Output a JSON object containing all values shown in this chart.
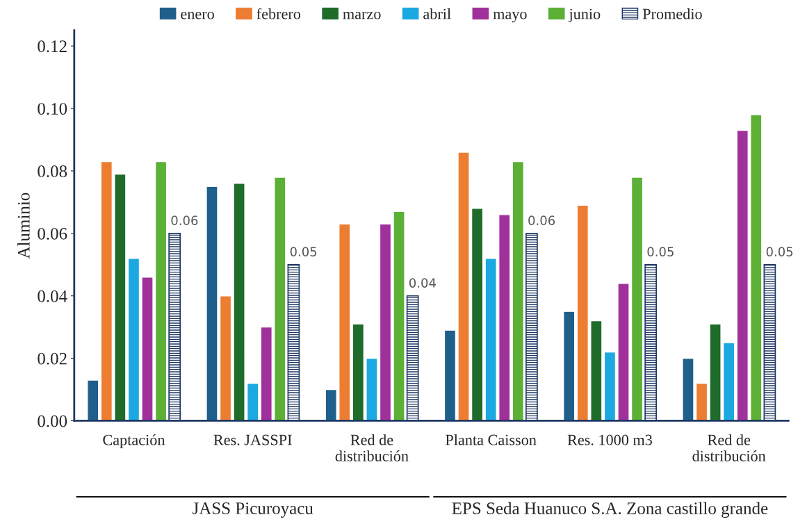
{
  "chart_data": {
    "type": "bar",
    "ylabel": "Aluminio",
    "categories": [
      "Captación",
      "Res. JASSPI",
      "Red de\ndistribución",
      "Planta Caisson",
      "Res. 1000 m3",
      "Red de\ndistribución"
    ],
    "series": [
      {
        "name": "enero",
        "color": "#1f5f8b",
        "values": [
          0.013,
          0.075,
          0.01,
          0.029,
          0.035,
          0.02
        ]
      },
      {
        "name": "febrero",
        "color": "#ed7d31",
        "values": [
          0.083,
          0.04,
          0.063,
          0.086,
          0.069,
          0.012
        ]
      },
      {
        "name": "marzo",
        "color": "#1e6b2a",
        "values": [
          0.079,
          0.076,
          0.031,
          0.068,
          0.032,
          0.031
        ]
      },
      {
        "name": "abril",
        "color": "#1ca8e0",
        "values": [
          0.052,
          0.012,
          0.02,
          0.052,
          0.022,
          0.025
        ]
      },
      {
        "name": "mayo",
        "color": "#a0309a",
        "values": [
          0.046,
          0.03,
          0.063,
          0.066,
          0.044,
          0.093
        ]
      },
      {
        "name": "junio",
        "color": "#5bb035",
        "values": [
          0.083,
          0.078,
          0.067,
          0.083,
          0.078,
          0.098
        ]
      },
      {
        "name": "Promedio",
        "color": "#1f3864",
        "values": [
          0.06,
          0.05,
          0.04,
          0.06,
          0.05,
          0.05
        ],
        "value_labels": [
          "0.06",
          "0.05",
          "0.04",
          "0.06",
          "0.05",
          "0.05"
        ]
      }
    ],
    "ylim": [
      0,
      0.125
    ],
    "yticks": [
      {
        "value": 0,
        "label": "0.00"
      },
      {
        "value": 0.02,
        "label": "0.02"
      },
      {
        "value": 0.04,
        "label": "0.04"
      },
      {
        "value": 0.06,
        "label": "0.06"
      },
      {
        "value": 0.08,
        "label": "0.08"
      },
      {
        "value": 0.1,
        "label": "0.10"
      },
      {
        "value": 0.12,
        "label": "0.12"
      }
    ],
    "annotations": [
      "JASS Picuroyacu",
      "EPS Seda Huanuco S.A. Zona castillo grande"
    ],
    "legend": "top",
    "grid": false
  }
}
